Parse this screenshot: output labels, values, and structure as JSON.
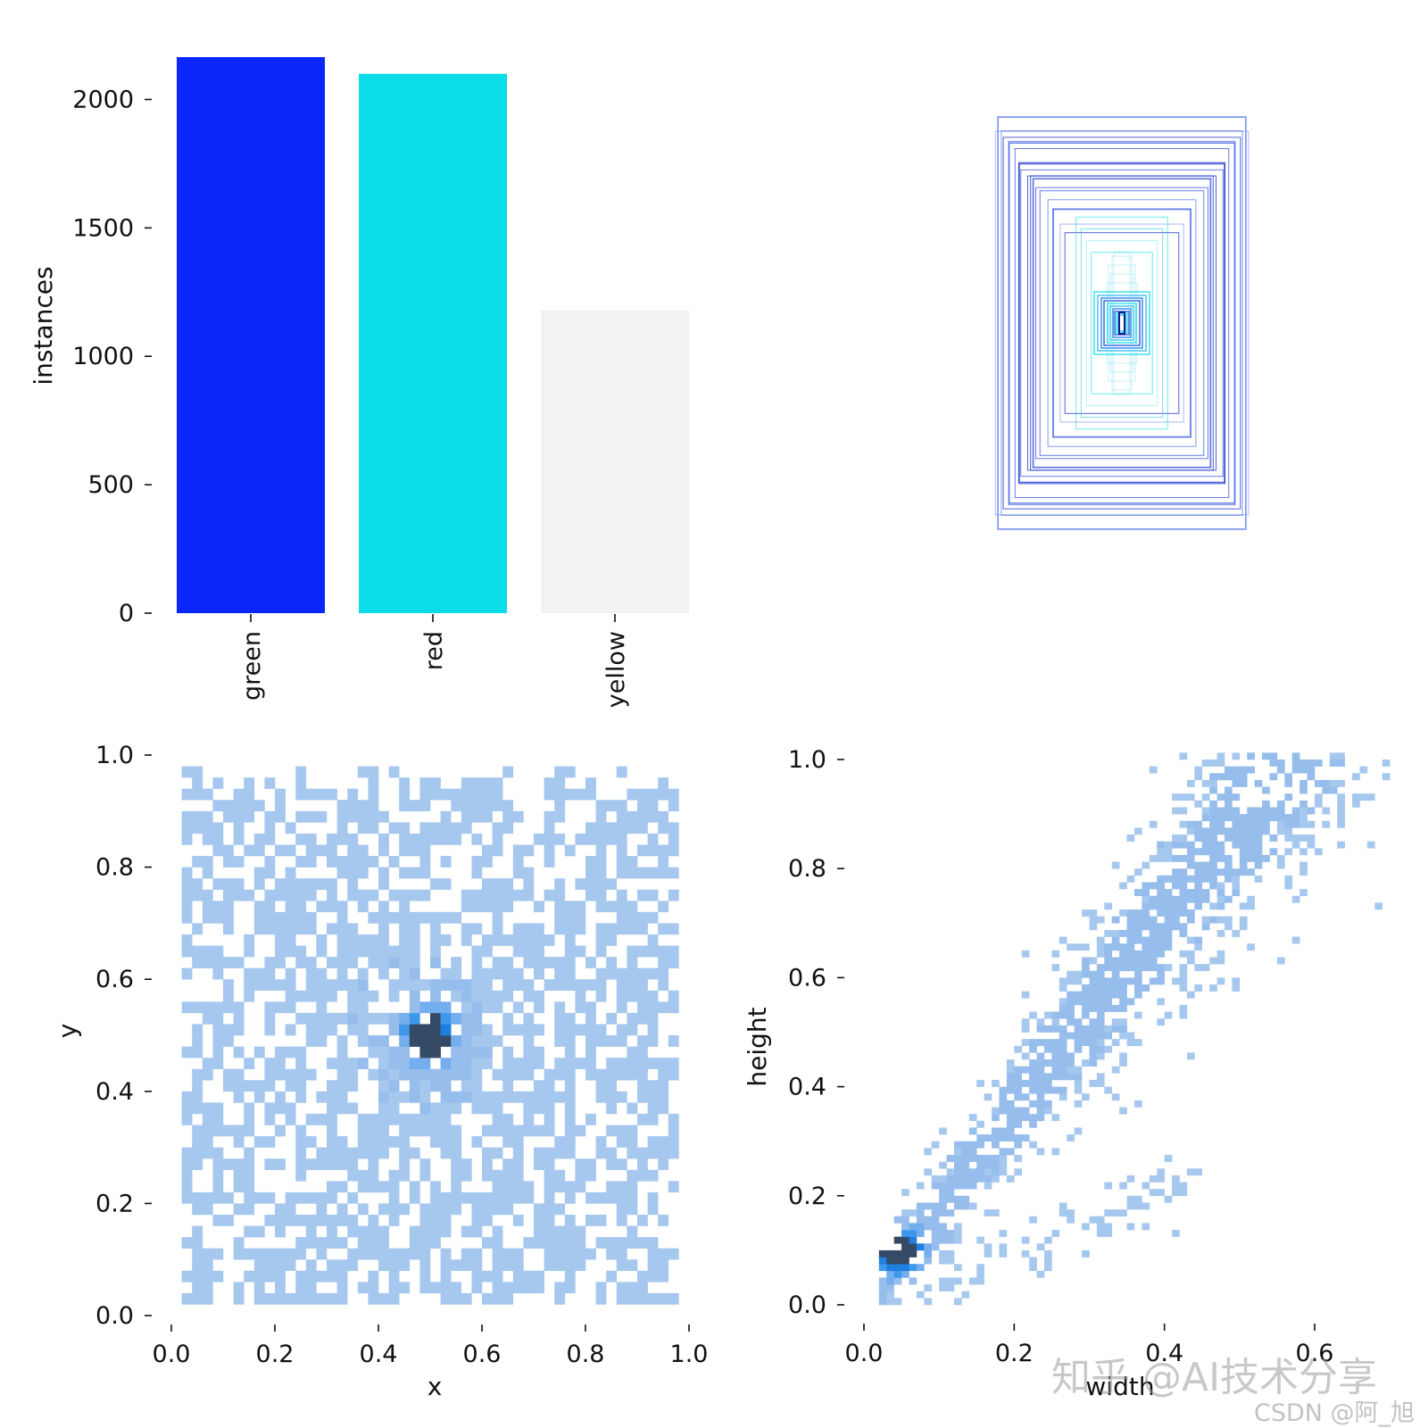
{
  "watermark": {
    "primary": "知乎 @AI技术分享",
    "secondary": "CSDN @阿_旭"
  },
  "chart_data": [
    {
      "id": "instances",
      "type": "bar",
      "categories": [
        "green",
        "red",
        "yellow"
      ],
      "values": [
        2165,
        2100,
        1180
      ],
      "colors": [
        "#0a26fb",
        "#0adde8",
        "#f2f2f2"
      ],
      "xlabel": "",
      "ylabel": "instances",
      "ylim": [
        0,
        2165
      ],
      "yticks": [
        0,
        500,
        1000,
        1500,
        2000
      ],
      "grid": false
    },
    {
      "id": "boxes",
      "type": "diagram",
      "description_free": true,
      "colors": [
        "#1020c8",
        "#0adde8",
        "#2a6af0"
      ]
    },
    {
      "id": "xy",
      "type": "heatmap",
      "xlabel": "x",
      "ylabel": "y",
      "xlim": [
        0,
        1
      ],
      "ylim": [
        0,
        1
      ],
      "xticks": [
        0.0,
        0.2,
        0.4,
        0.6,
        0.8,
        1.0
      ],
      "yticks": [
        0.0,
        0.2,
        0.4,
        0.6,
        0.8,
        1.0
      ],
      "tick_labels": [
        "0.0",
        "0.2",
        "0.4",
        "0.6",
        "0.8",
        "1.0"
      ],
      "bins": 50,
      "peak": [
        0.5,
        0.5
      ],
      "grid": false
    },
    {
      "id": "wh",
      "type": "heatmap",
      "xlabel": "width",
      "ylabel": "height",
      "xlim": [
        0,
        0.7
      ],
      "ylim": [
        0,
        1
      ],
      "xticks": [
        0.0,
        0.2,
        0.4,
        0.6
      ],
      "xtick_labels": [
        "0.0",
        "0.2",
        "0.4",
        "0.6"
      ],
      "yticks": [
        0.0,
        0.2,
        0.4,
        0.6,
        0.8,
        1.0
      ],
      "ytick_labels": [
        "0.0",
        "0.2",
        "0.4",
        "0.6",
        "0.8",
        "1.0"
      ],
      "peak": [
        0.04,
        0.09
      ],
      "grid": false
    }
  ]
}
